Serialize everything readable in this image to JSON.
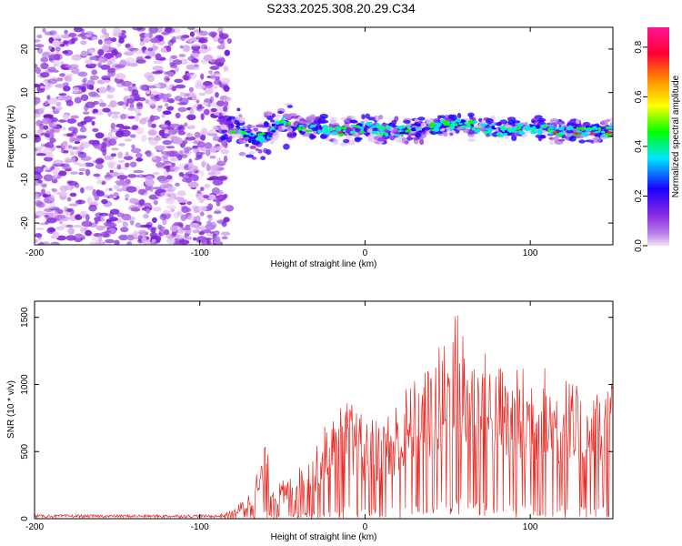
{
  "title": "S233.2025.308.20.29.C34",
  "chart_data": [
    {
      "type": "heatmap",
      "xlabel": "Height of straight line (km)",
      "ylabel": "Frequency (Hz)",
      "xlim": [
        -200,
        150
      ],
      "ylim": [
        -25,
        25
      ],
      "x_ticks": [
        -200,
        -100,
        0,
        100
      ],
      "x_tick_labels": [
        "-200",
        "-100",
        "0",
        "100"
      ],
      "y_ticks": [
        -20,
        -10,
        0,
        10,
        20
      ],
      "y_tick_labels": [
        "-20",
        "-10",
        "0",
        "10",
        "20"
      ],
      "noise_region_x": [
        -200,
        -82
      ],
      "signal_band": [
        {
          "x": -80,
          "f": 2
        },
        {
          "x": -65,
          "f": -1
        },
        {
          "x": -50,
          "f": 3
        },
        {
          "x": -35,
          "f": 2
        },
        {
          "x": -15,
          "f": 1
        },
        {
          "x": 0,
          "f": 2
        },
        {
          "x": 20,
          "f": 1
        },
        {
          "x": 40,
          "f": 2
        },
        {
          "x": 60,
          "f": 3
        },
        {
          "x": 80,
          "f": 1
        },
        {
          "x": 100,
          "f": 2
        },
        {
          "x": 120,
          "f": 1
        },
        {
          "x": 150,
          "f": 1
        }
      ],
      "colorbar": {
        "label": "Normalized spectral amplitude",
        "range": [
          0,
          0.88
        ],
        "ticks": [
          0,
          0.2,
          0.4,
          0.6,
          0.8
        ],
        "tick_labels": [
          "0.0",
          "0.2",
          "0.4",
          "0.6",
          "0.8"
        ],
        "colors": [
          "#f2e0f7",
          "#8a2be2",
          "#1a00ff",
          "#00e5ff",
          "#00ff00",
          "#ffff00",
          "#ff8c00",
          "#ff0033",
          "#ff1493"
        ]
      }
    },
    {
      "type": "line",
      "xlabel": "Height of straight line (km)",
      "ylabel": "SNR (10 * v/v)",
      "xlim": [
        -200,
        150
      ],
      "ylim": [
        0,
        1620
      ],
      "x_ticks": [
        -200,
        -100,
        0,
        100
      ],
      "x_tick_labels": [
        "-200",
        "-100",
        "0",
        "100"
      ],
      "y_ticks": [
        0,
        500,
        1000,
        1500
      ],
      "y_tick_labels": [
        "0",
        "500",
        "1000",
        "1500"
      ],
      "series": [
        {
          "name": "SNR",
          "color": "#e8251f",
          "envelope": [
            {
              "x": -200,
              "y": 30
            },
            {
              "x": -90,
              "y": 30
            },
            {
              "x": -80,
              "y": 60
            },
            {
              "x": -70,
              "y": 200
            },
            {
              "x": -60,
              "y": 560
            },
            {
              "x": -55,
              "y": 250
            },
            {
              "x": -45,
              "y": 320
            },
            {
              "x": -30,
              "y": 520
            },
            {
              "x": -25,
              "y": 700
            },
            {
              "x": -10,
              "y": 900
            },
            {
              "x": 0,
              "y": 750
            },
            {
              "x": 10,
              "y": 760
            },
            {
              "x": 25,
              "y": 1000
            },
            {
              "x": 35,
              "y": 1100
            },
            {
              "x": 45,
              "y": 1300
            },
            {
              "x": 55,
              "y": 1600
            },
            {
              "x": 65,
              "y": 1300
            },
            {
              "x": 75,
              "y": 1250
            },
            {
              "x": 90,
              "y": 1100
            },
            {
              "x": 100,
              "y": 1200
            },
            {
              "x": 120,
              "y": 1100
            },
            {
              "x": 135,
              "y": 900
            },
            {
              "x": 150,
              "y": 1100
            }
          ]
        }
      ]
    }
  ]
}
